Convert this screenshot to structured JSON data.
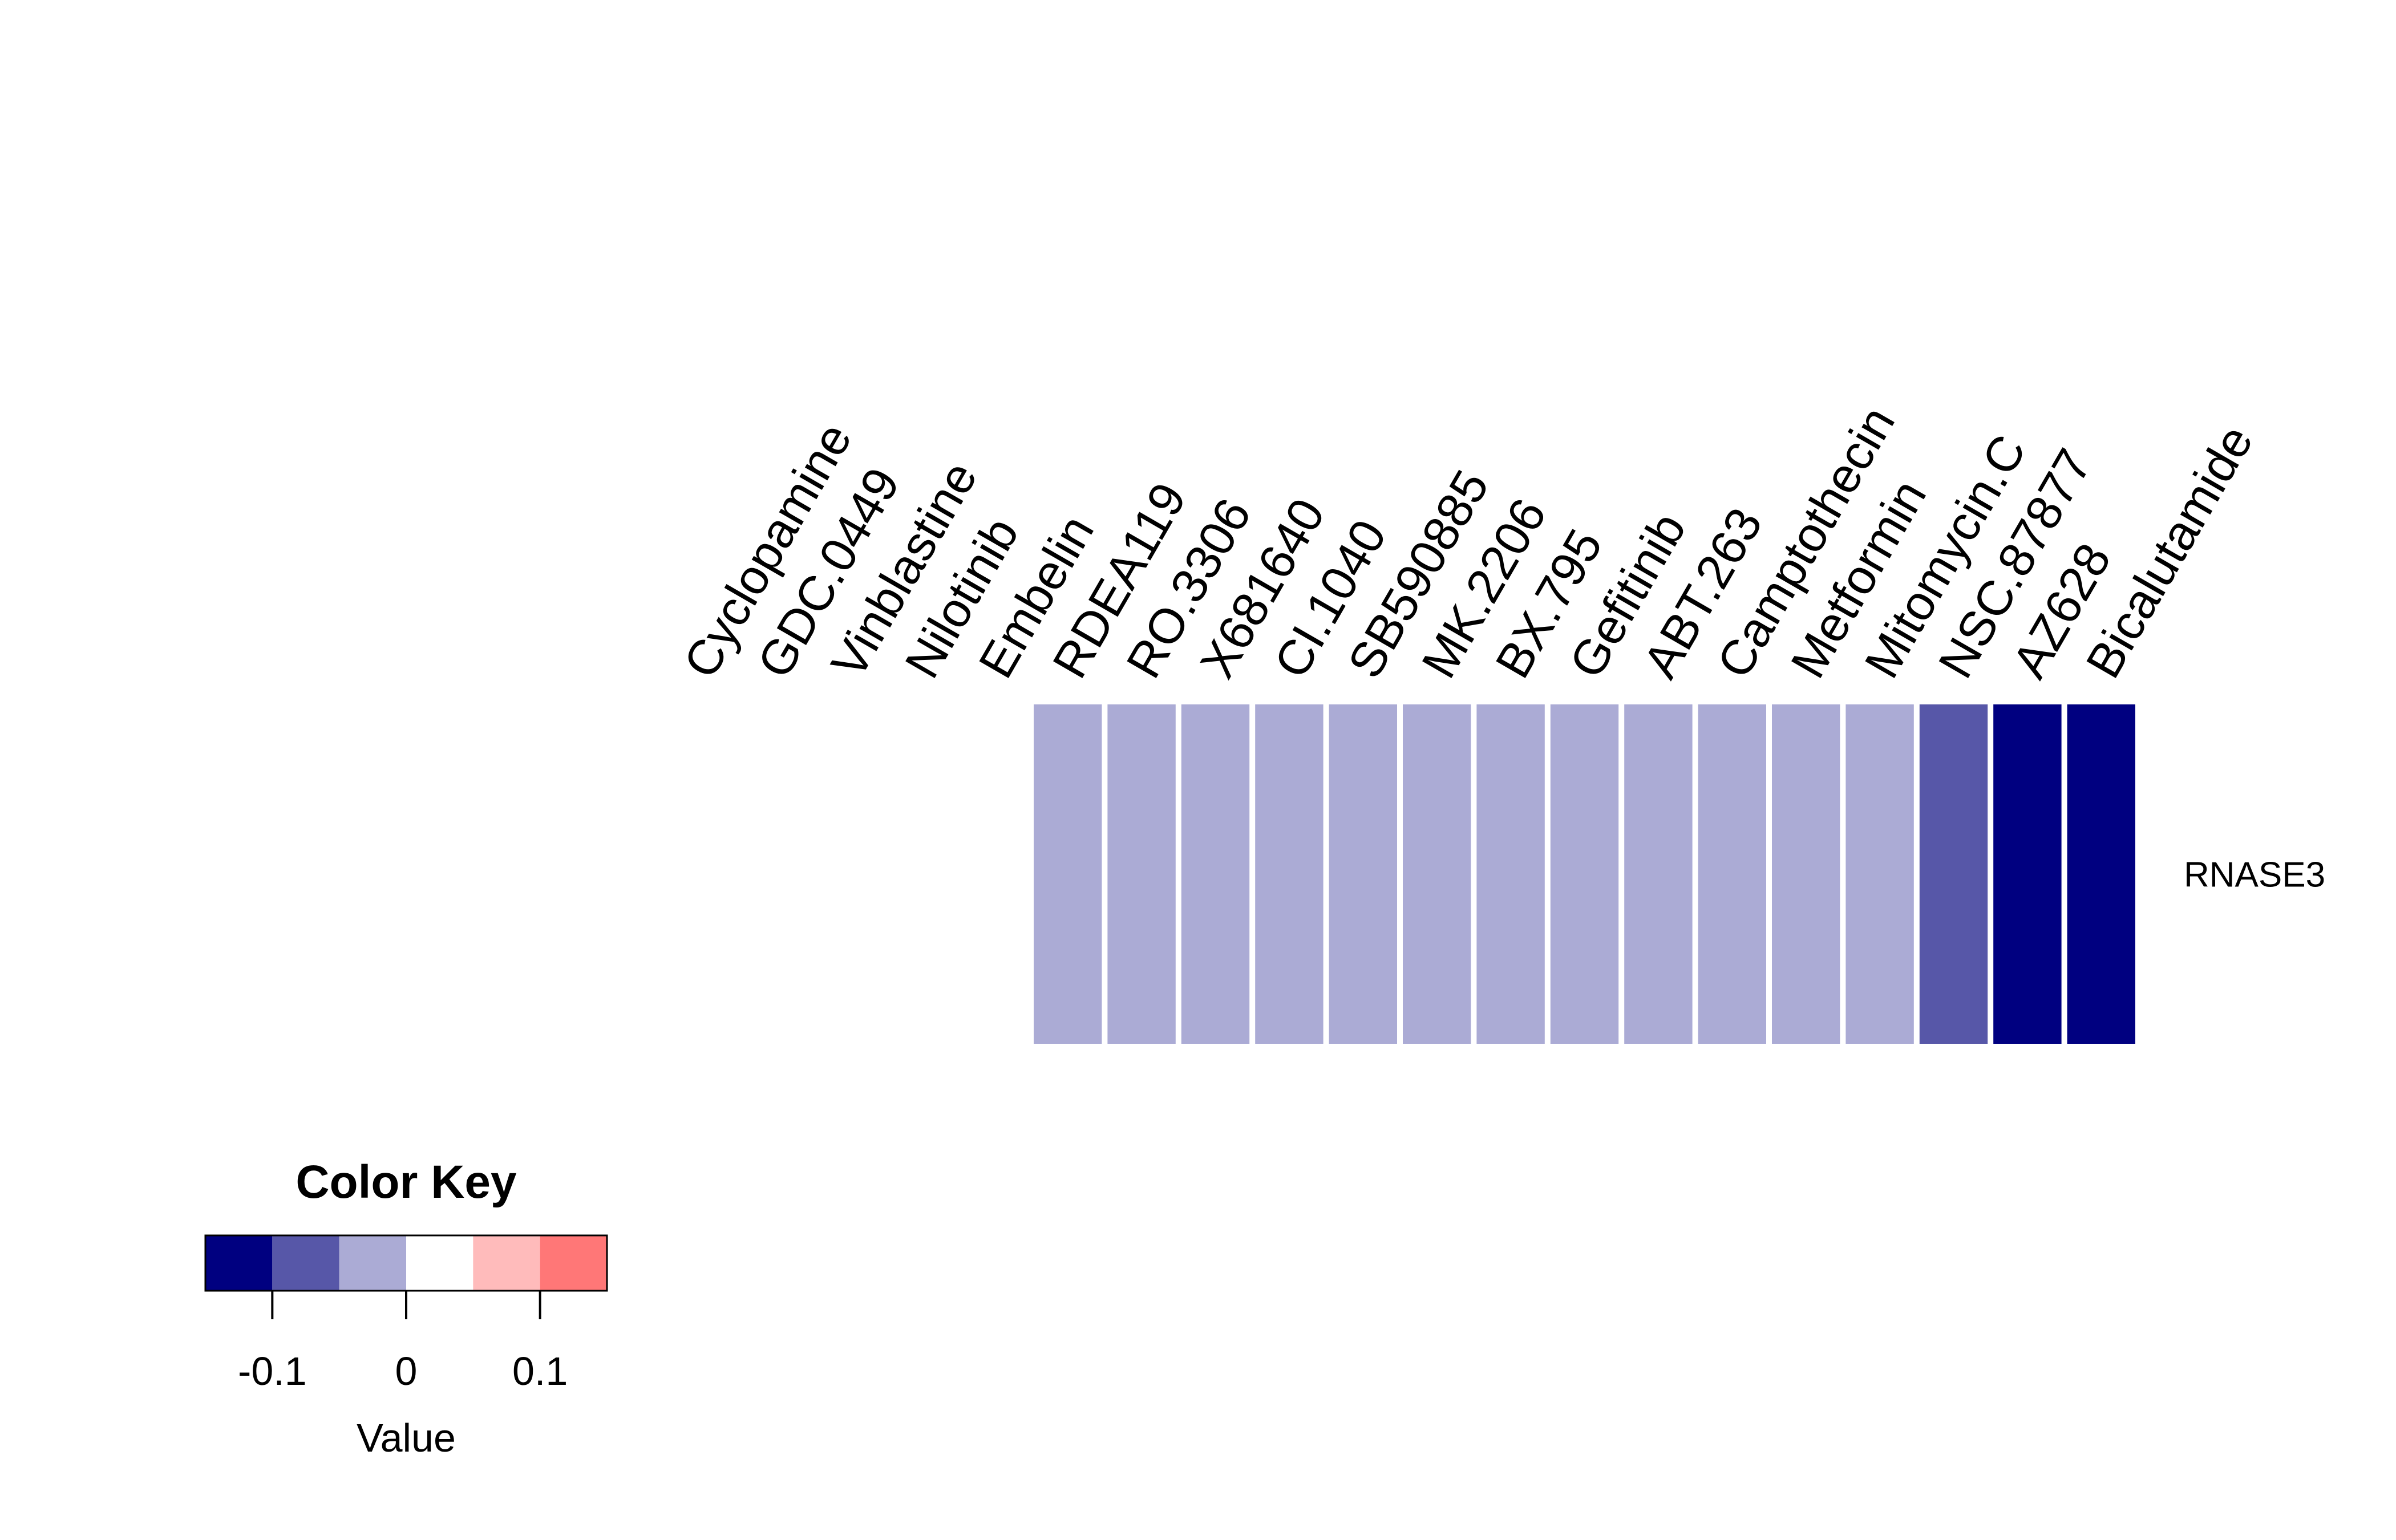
{
  "chart_data": {
    "type": "heatmap",
    "rows": [
      "RNASE3"
    ],
    "columns": [
      "Cyclopamine",
      "GDC.0449",
      "Vinblastine",
      "Nilotinib",
      "Embelin",
      "RDEA119",
      "RO.3306",
      "X681640",
      "CI.1040",
      "SB590885",
      "MK.2206",
      "BX.795",
      "Gefitinib",
      "ABT.263",
      "Camptothecin",
      "Metformin",
      "Mitomycin.C",
      "NSC.87877",
      "AZ628",
      "Bicalutamide"
    ],
    "values": [
      [
        0.05,
        0.05,
        0.05,
        0.05,
        0.05,
        -0.05,
        -0.05,
        -0.05,
        -0.05,
        -0.05,
        -0.05,
        -0.05,
        -0.05,
        -0.05,
        -0.05,
        -0.05,
        -0.05,
        -0.1,
        -0.16,
        -0.16
      ]
    ],
    "color_key": {
      "title": "Color Key",
      "xlabel": "Value",
      "range": [
        -0.1875,
        0.1875
      ],
      "breaks": [
        -0.1875,
        -0.125,
        -0.0625,
        0,
        0.0625,
        0.125,
        0.1875
      ],
      "tick_values": [
        -0.125,
        0,
        0.125
      ],
      "tick_labels": [
        "-0.1",
        "0",
        "0.1"
      ],
      "colors": [
        "#000080",
        "#5757A8",
        "#ABABD5",
        "#FFFFFF",
        "#FFBBBB",
        "#FF7777",
        "#FF3333"
      ]
    }
  }
}
